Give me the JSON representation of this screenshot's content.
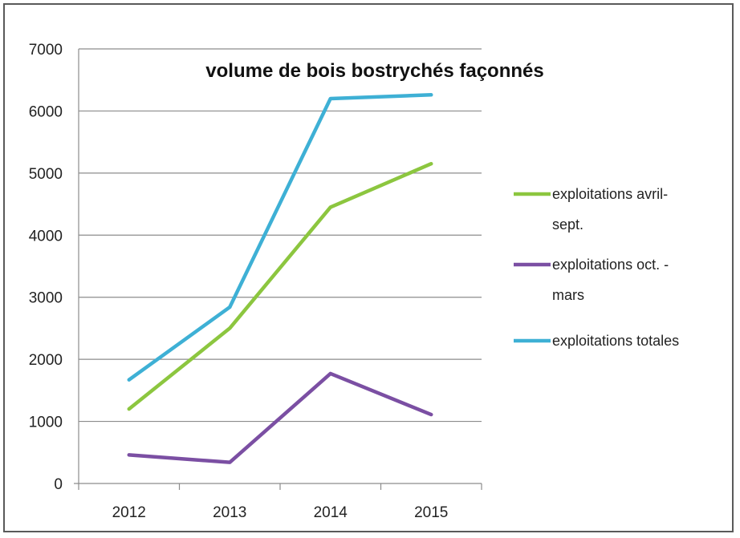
{
  "chart_data": {
    "type": "line",
    "title": "volume de bois bostrychés façonnés",
    "xlabel": "",
    "ylabel": "",
    "categories": [
      "2012",
      "2013",
      "2014",
      "2015"
    ],
    "ylim": [
      0,
      7000
    ],
    "yticks": [
      "0",
      "1000",
      "2000",
      "3000",
      "4000",
      "5000",
      "6000",
      "7000"
    ],
    "grid": true,
    "legend_position": "right",
    "series": [
      {
        "name": "exploitations avril-sept.",
        "color": "#8cc63f",
        "values": [
          1200,
          2500,
          4450,
          5150
        ]
      },
      {
        "name": "exploitations oct. - mars",
        "color": "#7b4fa3",
        "values": [
          460,
          340,
          1770,
          1110
        ]
      },
      {
        "name": "exploitations totales",
        "color": "#3eb0d5",
        "values": [
          1670,
          2840,
          6200,
          6260
        ]
      }
    ]
  }
}
